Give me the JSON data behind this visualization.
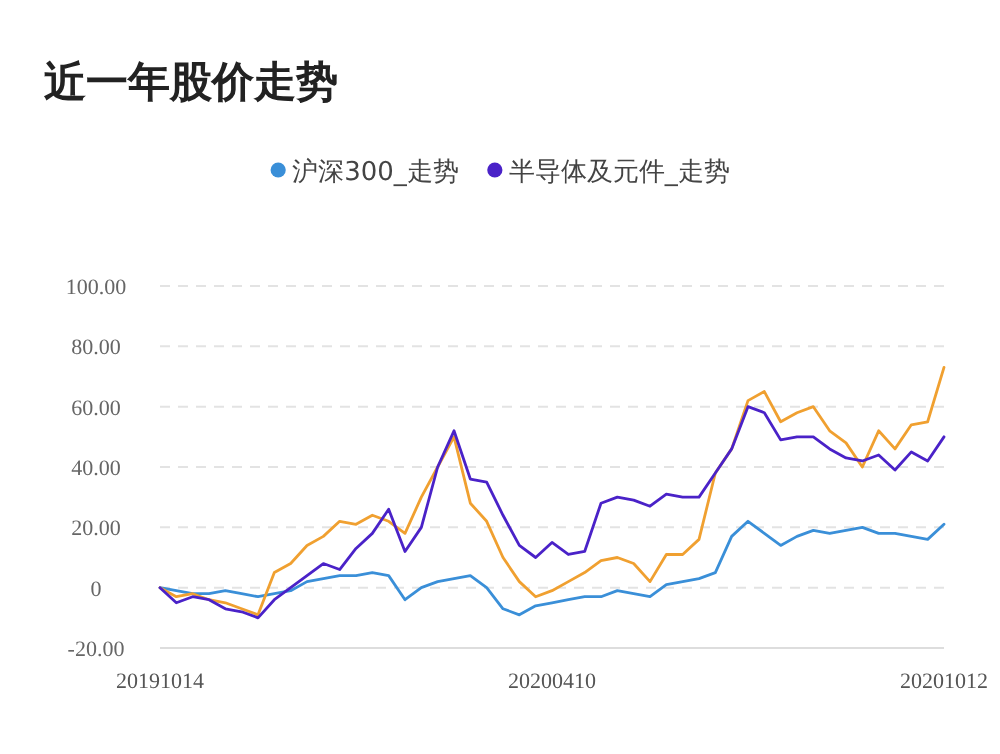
{
  "chart_data": {
    "type": "line",
    "title": "近一年股价走势",
    "legend": "top",
    "grid": "y",
    "marker": "none",
    "line_style": "solid",
    "categories": [
      "20191014",
      null,
      null,
      null,
      null,
      null,
      null,
      null,
      null,
      null,
      null,
      null,
      null,
      null,
      null,
      null,
      null,
      null,
      null,
      null,
      null,
      null,
      null,
      null,
      "20200410",
      null,
      null,
      null,
      null,
      null,
      null,
      null,
      null,
      null,
      null,
      null,
      null,
      null,
      null,
      null,
      null,
      null,
      null,
      null,
      null,
      null,
      null,
      null,
      "20201012"
    ],
    "ylim": [
      -20,
      100
    ],
    "yticks": [
      {
        "value": -20,
        "label": "-20.00"
      },
      0,
      {
        "value": 20,
        "label": "20.00"
      },
      {
        "value": 40,
        "label": "40.00"
      },
      {
        "value": 60,
        "label": "60.00"
      },
      {
        "value": 80,
        "label": "80.00"
      },
      {
        "value": 100,
        "label": "100.00"
      }
    ],
    "series": [
      {
        "name": "沪深300_走势",
        "color": "#3a8fd8",
        "values": [
          0,
          -1,
          -2,
          -2,
          -1,
          -2,
          -3,
          -2,
          -1,
          2,
          3,
          4,
          4,
          5,
          4,
          -4,
          0,
          2,
          3,
          4,
          0,
          -7,
          -9,
          -6,
          -5,
          -4,
          -3,
          -3,
          -1,
          -2,
          -3,
          1,
          2,
          3,
          5,
          17,
          22,
          18,
          14,
          17,
          19,
          18,
          19,
          20,
          18,
          18,
          17,
          16,
          21
        ]
      },
      {
        "color": "#f0a030",
        "values": [
          0,
          -3,
          -2,
          -4,
          -5,
          -7,
          -9,
          5,
          8,
          14,
          17,
          22,
          21,
          24,
          22,
          18,
          30,
          40,
          50,
          28,
          22,
          10,
          2,
          -3,
          -1,
          2,
          5,
          9,
          10,
          8,
          2,
          11,
          11,
          16,
          38,
          46,
          62,
          65,
          55,
          58,
          60,
          52,
          48,
          40,
          52,
          46,
          54,
          55,
          73
        ]
      },
      {
        "name": "半导体及元件_走势",
        "color": "#4a22c8",
        "values": [
          0,
          -5,
          -3,
          -4,
          -7,
          -8,
          -10,
          -4,
          0,
          4,
          8,
          6,
          13,
          18,
          26,
          12,
          20,
          40,
          52,
          36,
          35,
          24,
          14,
          10,
          15,
          11,
          12,
          28,
          30,
          29,
          27,
          31,
          30,
          30,
          38,
          46,
          60,
          58,
          49,
          50,
          50,
          46,
          43,
          42,
          44,
          39,
          45,
          42,
          50
        ]
      }
    ]
  }
}
